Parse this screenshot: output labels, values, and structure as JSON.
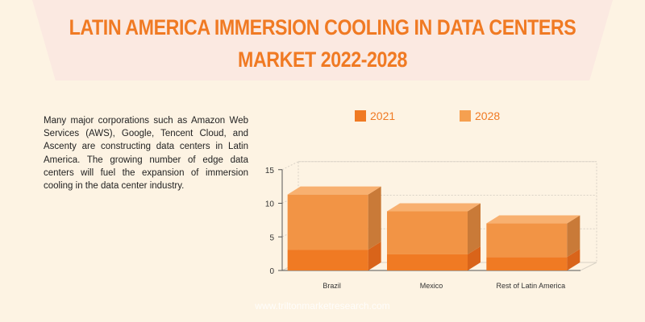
{
  "header": {
    "title_line1": "LATIN AMERICA IMMERSION COOLING IN DATA CENTERS",
    "title_line2": "MARKET 2022-2028"
  },
  "description": "Many major corporations such as Amazon Web Services (AWS), Google, Tencent Cloud, and Ascenty are constructing data centers in Latin America. The growing number of edge data centers will fuel the expansion of immersion cooling in the data center industry.",
  "footer": "www.triltonmarketresearch.com",
  "colors": {
    "series_2021": "#f07a23",
    "series_2028": "#f5a050",
    "title": "#f07a23"
  },
  "chart_data": {
    "type": "bar",
    "stacked": true,
    "three_d": true,
    "categories": [
      "Brazil",
      "Mexico",
      "Rest of Latin America"
    ],
    "series": [
      {
        "name": "2021",
        "values": [
          3.1,
          2.4,
          2.0
        ]
      },
      {
        "name": "2028",
        "values": [
          11.3,
          8.8,
          7.0
        ]
      }
    ],
    "ylim": [
      0,
      15
    ],
    "yticks": [
      0,
      5,
      10,
      15
    ],
    "grid": true,
    "legend": "top"
  }
}
